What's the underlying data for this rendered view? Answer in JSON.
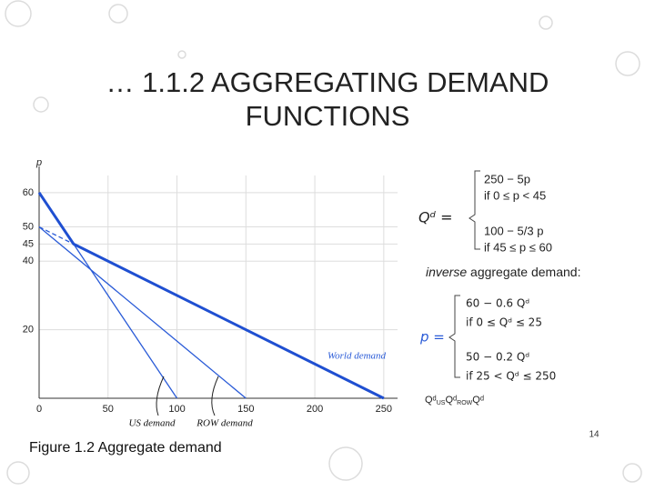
{
  "slide": {
    "title_lines": [
      "… 1.1.2 AGGREGATING DEMAND",
      "FUNCTIONS"
    ],
    "demand": {
      "lhs": "Qᵈ =",
      "cases": [
        [
          "250 − 5p",
          "if  0 ≤ p < 45"
        ],
        [
          "100 − 5/3 p",
          "if  45 ≤ p ≤ 60"
        ]
      ]
    },
    "inverse_heading": {
      "emph": "inverse",
      "rest": " aggregate demand:"
    },
    "inverse": {
      "lhs": "p =",
      "cases": [
        [
          "60 − 0.6 Qᵈ",
          "if  0 ≤ Qᵈ ≤ 25"
        ],
        [
          "50 − 0.2 Qᵈ",
          "if 25 <  Qᵈ ≤ 250"
        ]
      ]
    },
    "caption": "Figure 1.2 Aggregate demand",
    "page_number": "14"
  },
  "chart_data": {
    "type": "line",
    "ylabel": "p",
    "xlabel": [
      "Qᵈ",
      "US",
      "Qᵈ",
      "ROW",
      "Qᵈ"
    ],
    "xlim": [
      0,
      260
    ],
    "ylim": [
      0,
      65
    ],
    "xticks": [
      0,
      50,
      100,
      150,
      200,
      250
    ],
    "yticks": [
      20,
      40,
      45,
      50,
      60
    ],
    "grid": true,
    "series": [
      {
        "name": "US demand",
        "color": "#2a5bd7",
        "width": 1.3,
        "x": [
          0,
          100
        ],
        "values": [
          60,
          0
        ]
      },
      {
        "name": "ROW demand",
        "color": "#2a5bd7",
        "width": 1.3,
        "x": [
          0,
          150
        ],
        "values": [
          50,
          0
        ]
      },
      {
        "color": "#2a5bd7",
        "width": 1.3,
        "dashed": true,
        "x": [
          0,
          25
        ],
        "values": [
          50,
          45
        ]
      },
      {
        "name": "World demand",
        "color": "#1f4fd1",
        "width": 3,
        "x": [
          0,
          25,
          250
        ],
        "values": [
          60,
          45,
          0
        ]
      }
    ]
  }
}
